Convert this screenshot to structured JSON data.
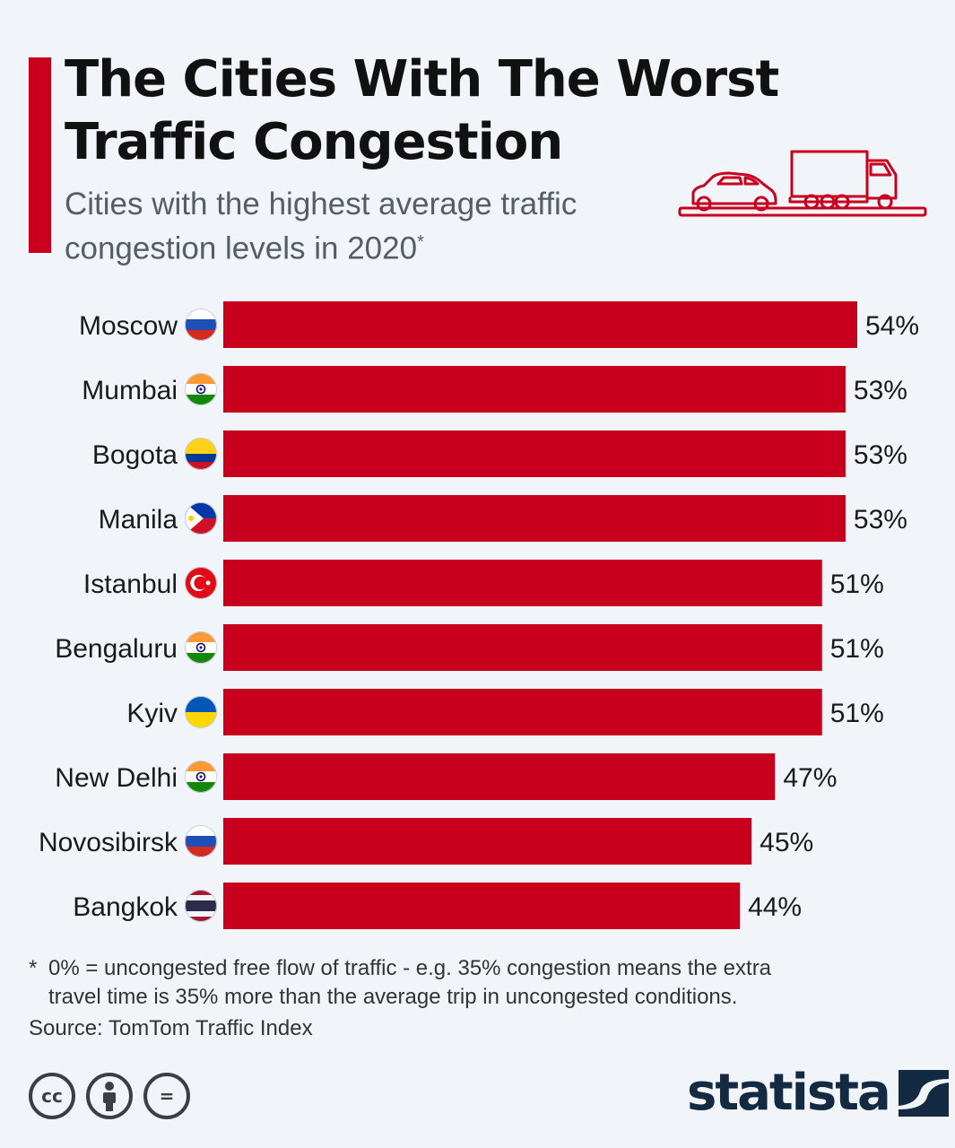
{
  "header": {
    "title_line1": "The Cities With The Worst",
    "title_line2": "Traffic Congestion",
    "subtitle_line1": "Cities with the highest average traffic",
    "subtitle_line2": "congestion levels in 2020",
    "subtitle_mark": "*"
  },
  "colors": {
    "accent": "#c8001e",
    "bar": "#c8001e",
    "background": "#f1f4f9",
    "logo": "#142a42"
  },
  "chart_data": {
    "type": "bar",
    "orientation": "horizontal",
    "title": "The Cities With The Worst Traffic Congestion",
    "subtitle": "Cities with the highest average traffic congestion levels in 2020*",
    "categories": [
      "Moscow",
      "Mumbai",
      "Bogota",
      "Manila",
      "Istanbul",
      "Bengaluru",
      "Kyiv",
      "New Delhi",
      "Novosibirsk",
      "Bangkok"
    ],
    "values": [
      54,
      53,
      53,
      53,
      51,
      51,
      51,
      47,
      45,
      44
    ],
    "value_labels": [
      "54%",
      "53%",
      "53%",
      "53%",
      "51%",
      "51%",
      "51%",
      "47%",
      "45%",
      "44%"
    ],
    "flags": [
      "russia-flag",
      "india-flag",
      "colombia-flag",
      "philippines-flag",
      "turkey-flag",
      "india-flag",
      "ukraine-flag",
      "india-flag",
      "russia-flag",
      "thailand-flag"
    ],
    "unit": "%",
    "xlim": [
      0,
      54
    ],
    "grid": false,
    "legend": "none"
  },
  "footnote": {
    "marker": "*",
    "line1": "0% = uncongested free flow of traffic - e.g. 35% congestion means the extra",
    "line2": "travel time is 35% more than the average trip in uncongested conditions."
  },
  "source": "Source: TomTom Traffic Index",
  "license_icons": [
    {
      "name": "creative-commons-icon",
      "glyph": "cc"
    },
    {
      "name": "attribution-icon",
      "glyph": "person"
    },
    {
      "name": "no-derivatives-icon",
      "glyph": "="
    }
  ],
  "brand": {
    "logo_text": "statista"
  }
}
